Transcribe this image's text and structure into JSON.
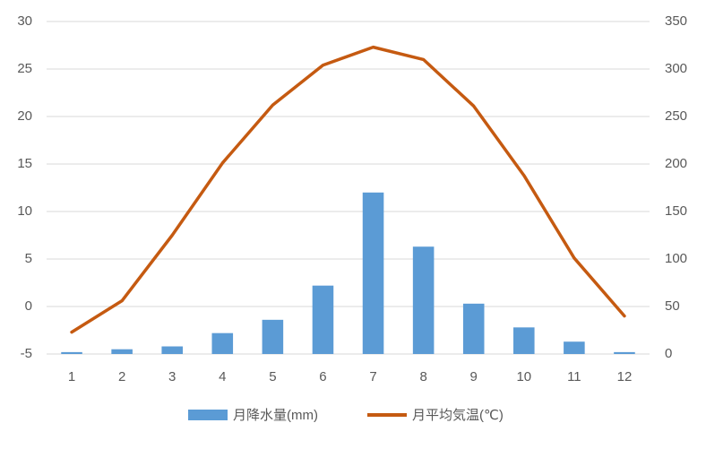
{
  "chart_data": {
    "type": "combo",
    "categories": [
      "1",
      "2",
      "3",
      "4",
      "5",
      "6",
      "7",
      "8",
      "9",
      "10",
      "11",
      "12"
    ],
    "series": [
      {
        "name": "月降水量(mm)",
        "type": "bar",
        "axis": "y2",
        "color": "#5b9bd5",
        "values": [
          2,
          5,
          8,
          22,
          36,
          72,
          170,
          113,
          53,
          28,
          13,
          2
        ]
      },
      {
        "name": "月平均気温(℃)",
        "type": "line",
        "color": "#c55a11",
        "values": [
          -2.7,
          0.6,
          7.5,
          15.1,
          21.2,
          25.4,
          27.3,
          26.0,
          21.1,
          13.8,
          5.1,
          -1.0
        ]
      }
    ],
    "ylim": [
      -5,
      30
    ],
    "yticks": [
      -5,
      0,
      5,
      10,
      15,
      20,
      25,
      30
    ],
    "y2lim": [
      0,
      350
    ],
    "y2ticks": [
      0,
      50,
      100,
      150,
      200,
      250,
      300,
      350
    ],
    "grid": true,
    "legend": "bottom"
  }
}
